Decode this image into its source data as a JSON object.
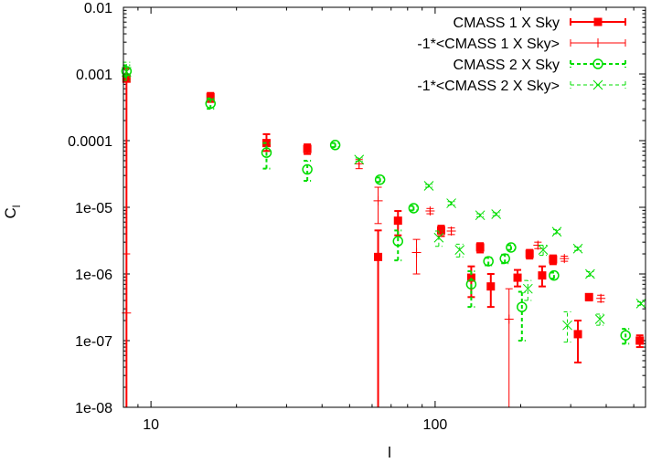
{
  "chart_data": {
    "type": "scatter",
    "xscale": "log",
    "yscale": "log",
    "xlim": [
      8,
      550
    ],
    "ylim": [
      1e-08,
      0.01
    ],
    "xlabel": "l",
    "ylabel": "C",
    "ylabel_subscript": "l",
    "x_ticks": [
      {
        "value": 10,
        "label": "10"
      },
      {
        "value": 100,
        "label": "100"
      }
    ],
    "y_ticks": [
      {
        "value": 1e-08,
        "label": "1e-08"
      },
      {
        "value": 1e-07,
        "label": "1e-07"
      },
      {
        "value": 1e-06,
        "label": "1e-06"
      },
      {
        "value": 1e-05,
        "label": "1e-05"
      },
      {
        "value": 0.0001,
        "label": "0.0001"
      },
      {
        "value": 0.001,
        "label": "0.001"
      },
      {
        "value": 0.01,
        "label": "0.01"
      }
    ],
    "legend_position": "top-right",
    "series": [
      {
        "name": "CMASS 1 X Sky",
        "color": "#ff0000",
        "marker": "filled-square",
        "line": "solid",
        "points": [
          {
            "x": 8.2,
            "y": 0.00085,
            "lo": 1e-09,
            "hi": 0.0012
          },
          {
            "x": 16.2,
            "y": 0.00045,
            "lo": 0.00038,
            "hi": 0.00052
          },
          {
            "x": 25.5,
            "y": 9.2e-05,
            "lo": 7e-05,
            "hi": 0.000125
          },
          {
            "x": 35.5,
            "y": 7.5e-05,
            "lo": 6.3e-05,
            "hi": 8.8e-05
          },
          {
            "x": 63,
            "y": 1.8e-06,
            "lo": 1e-09,
            "hi": 4.5e-06
          },
          {
            "x": 74,
            "y": 6.3e-06,
            "lo": 3.8e-06,
            "hi": 8.8e-06
          },
          {
            "x": 105,
            "y": 4.5e-06,
            "lo": 3.7e-06,
            "hi": 5.3e-06
          },
          {
            "x": 134,
            "y": 8.8e-07,
            "lo": 4.5e-07,
            "hi": 1.3e-06
          },
          {
            "x": 144,
            "y": 2.5e-06,
            "lo": 2.1e-06,
            "hi": 2.9e-06
          },
          {
            "x": 157,
            "y": 6.5e-07,
            "lo": 3.2e-07,
            "hi": 1e-06
          },
          {
            "x": 195,
            "y": 8.8e-07,
            "lo": 6.5e-07,
            "hi": 1.15e-06
          },
          {
            "x": 215,
            "y": 2e-06,
            "lo": 1.7e-06,
            "hi": 2.3e-06
          },
          {
            "x": 238,
            "y": 9.5e-07,
            "lo": 6.5e-07,
            "hi": 1.3e-06
          },
          {
            "x": 260,
            "y": 1.65e-06,
            "lo": 1.4e-06,
            "hi": 1.9e-06
          },
          {
            "x": 318,
            "y": 1.25e-07,
            "lo": 4.7e-08,
            "hi": 2e-07
          },
          {
            "x": 348,
            "y": 4.5e-07,
            "lo": 4e-07,
            "hi": 5e-07
          },
          {
            "x": 525,
            "y": 1e-07,
            "lo": 8e-08,
            "hi": 1.2e-07
          }
        ]
      },
      {
        "name": "-1*<CMASS 1 X Sky>",
        "color": "#ff0000",
        "marker": "plus",
        "line": "thin",
        "points": [
          {
            "x": 8.2,
            "y": 2.6e-07,
            "lo": 1e-09,
            "hi": 2e-06
          },
          {
            "x": 54,
            "y": 4.5e-05,
            "lo": 3.8e-05,
            "hi": 5.2e-05
          },
          {
            "x": 63,
            "y": 1.25e-05,
            "lo": 5.7e-06,
            "hi": 2e-05
          },
          {
            "x": 86,
            "y": 2.1e-06,
            "lo": 1e-06,
            "hi": 3.3e-06
          },
          {
            "x": 96,
            "y": 8.8e-06,
            "lo": 8e-06,
            "hi": 9.6e-06
          },
          {
            "x": 114,
            "y": 4.4e-06,
            "lo": 3.9e-06,
            "hi": 4.9e-06
          },
          {
            "x": 182,
            "y": 2.1e-07,
            "lo": 1e-09,
            "hi": 6e-07
          },
          {
            "x": 230,
            "y": 2.7e-06,
            "lo": 2.4e-06,
            "hi": 3e-06
          },
          {
            "x": 285,
            "y": 1.7e-06,
            "lo": 1.55e-06,
            "hi": 1.85e-06
          },
          {
            "x": 383,
            "y": 4.3e-07,
            "lo": 3.8e-07,
            "hi": 4.8e-07
          }
        ]
      },
      {
        "name": "CMASS 2 X Sky",
        "color": "#00dd00",
        "marker": "open-circle",
        "line": "dashed",
        "points": [
          {
            "x": 8.2,
            "y": 0.0011,
            "lo": 0.0009,
            "hi": 0.00135
          },
          {
            "x": 16.2,
            "y": 0.00036,
            "lo": 0.0003,
            "hi": 0.00043
          },
          {
            "x": 25.5,
            "y": 6.6e-05,
            "lo": 3.8e-05,
            "hi": 9.2e-05
          },
          {
            "x": 35.5,
            "y": 3.7e-05,
            "lo": 2.5e-05,
            "hi": 5e-05
          },
          {
            "x": 44.5,
            "y": 8.6e-05,
            "lo": 8e-05,
            "hi": 9.2e-05
          },
          {
            "x": 64,
            "y": 2.6e-05,
            "lo": 2.4e-05,
            "hi": 2.8e-05
          },
          {
            "x": 74,
            "y": 3.1e-06,
            "lo": 1.6e-06,
            "hi": 4.5e-06
          },
          {
            "x": 84,
            "y": 9.7e-06,
            "lo": 9e-06,
            "hi": 1.05e-05
          },
          {
            "x": 134,
            "y": 7e-07,
            "lo": 3.2e-07,
            "hi": 1.1e-06
          },
          {
            "x": 154,
            "y": 1.55e-06,
            "lo": 1.35e-06,
            "hi": 1.75e-06
          },
          {
            "x": 176,
            "y": 1.7e-06,
            "lo": 1.45e-06,
            "hi": 1.95e-06
          },
          {
            "x": 185,
            "y": 2.5e-06,
            "lo": 2.3e-06,
            "hi": 2.7e-06
          },
          {
            "x": 202,
            "y": 3.2e-07,
            "lo": 1e-07,
            "hi": 5.4e-07
          },
          {
            "x": 262,
            "y": 9.5e-07,
            "lo": 8.5e-07,
            "hi": 1.05e-06
          },
          {
            "x": 468,
            "y": 1.2e-07,
            "lo": 9e-08,
            "hi": 1.5e-07
          }
        ]
      },
      {
        "name": "-1*<CMASS 2 X Sky>",
        "color": "#00dd00",
        "marker": "cross",
        "line": "dashed-thin",
        "points": [
          {
            "x": 8.2,
            "y": 0.00108,
            "lo": 0.0008,
            "hi": 0.0015
          },
          {
            "x": 54,
            "y": 5.2e-05,
            "lo": 4.9e-05,
            "hi": 5.5e-05
          },
          {
            "x": 103,
            "y": 3.5e-06,
            "lo": 2.6e-06,
            "hi": 4.4e-06
          },
          {
            "x": 95,
            "y": 2.1e-05,
            "lo": 2e-05,
            "hi": 2.2e-05
          },
          {
            "x": 114,
            "y": 1.15e-05,
            "lo": 1.08e-05,
            "hi": 1.22e-05
          },
          {
            "x": 122,
            "y": 2.3e-06,
            "lo": 1.8e-06,
            "hi": 2.8e-06
          },
          {
            "x": 144,
            "y": 7.6e-06,
            "lo": 7.2e-06,
            "hi": 8e-06
          },
          {
            "x": 164,
            "y": 7.9e-06,
            "lo": 7.5e-06,
            "hi": 8.3e-06
          },
          {
            "x": 212,
            "y": 6e-07,
            "lo": 4e-07,
            "hi": 8e-07
          },
          {
            "x": 240,
            "y": 2.3e-06,
            "lo": 1.9e-06,
            "hi": 2.7e-06
          },
          {
            "x": 268,
            "y": 4.3e-06,
            "lo": 4e-06,
            "hi": 4.6e-06
          },
          {
            "x": 292,
            "y": 1.7e-07,
            "lo": 9.5e-08,
            "hi": 2.7e-07
          },
          {
            "x": 318,
            "y": 2.4e-06,
            "lo": 2.25e-06,
            "hi": 2.55e-06
          },
          {
            "x": 351,
            "y": 1e-06,
            "lo": 9.2e-07,
            "hi": 1.08e-06
          },
          {
            "x": 380,
            "y": 2.1e-07,
            "lo": 1.7e-07,
            "hi": 2.5e-07
          },
          {
            "x": 530,
            "y": 3.6e-07,
            "lo": 3.4e-07,
            "hi": 3.8e-07
          }
        ]
      }
    ]
  }
}
